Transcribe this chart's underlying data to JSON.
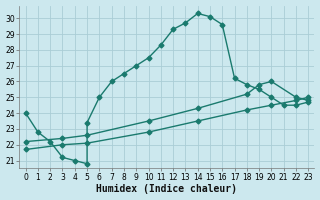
{
  "bg_color": "#cce8ee",
  "grid_color": "#aacdd6",
  "line_color": "#1a7a6e",
  "marker": "D",
  "markersize": 2.5,
  "linewidth": 1.0,
  "xlabel": "Humidex (Indice chaleur)",
  "xlim": [
    -0.5,
    23.5
  ],
  "ylim": [
    20.5,
    30.8
  ],
  "xticks": [
    0,
    1,
    2,
    3,
    4,
    5,
    6,
    7,
    8,
    9,
    10,
    11,
    12,
    13,
    14,
    15,
    16,
    17,
    18,
    19,
    20,
    21,
    22,
    23
  ],
  "yticks": [
    21,
    22,
    23,
    24,
    25,
    26,
    27,
    28,
    29,
    30
  ],
  "tick_fontsize": 5.5,
  "xlabel_fontsize": 7.0,
  "curve1_x": [
    0,
    1,
    2,
    3,
    4,
    5,
    5,
    6,
    7,
    8,
    9,
    10,
    11,
    12,
    13,
    14,
    15,
    16,
    17,
    18,
    19,
    20,
    21,
    22,
    23
  ],
  "curve1_y": [
    24.0,
    22.8,
    22.2,
    21.2,
    21.0,
    20.8,
    23.4,
    25.0,
    26.0,
    26.5,
    27.0,
    27.5,
    28.3,
    29.3,
    29.7,
    30.3,
    30.1,
    29.6,
    26.2,
    25.8,
    25.5,
    25.0,
    24.5,
    24.5,
    24.7
  ],
  "curve2_x": [
    0,
    3,
    5,
    10,
    14,
    18,
    20,
    22,
    23
  ],
  "curve2_y": [
    21.7,
    22.0,
    22.1,
    22.8,
    23.5,
    24.2,
    24.5,
    24.8,
    25.0
  ],
  "curve3_x": [
    0,
    3,
    5,
    10,
    14,
    18,
    19,
    20,
    22,
    23
  ],
  "curve3_y": [
    22.2,
    22.4,
    22.6,
    23.5,
    24.3,
    25.2,
    25.8,
    26.0,
    25.0,
    24.8
  ]
}
